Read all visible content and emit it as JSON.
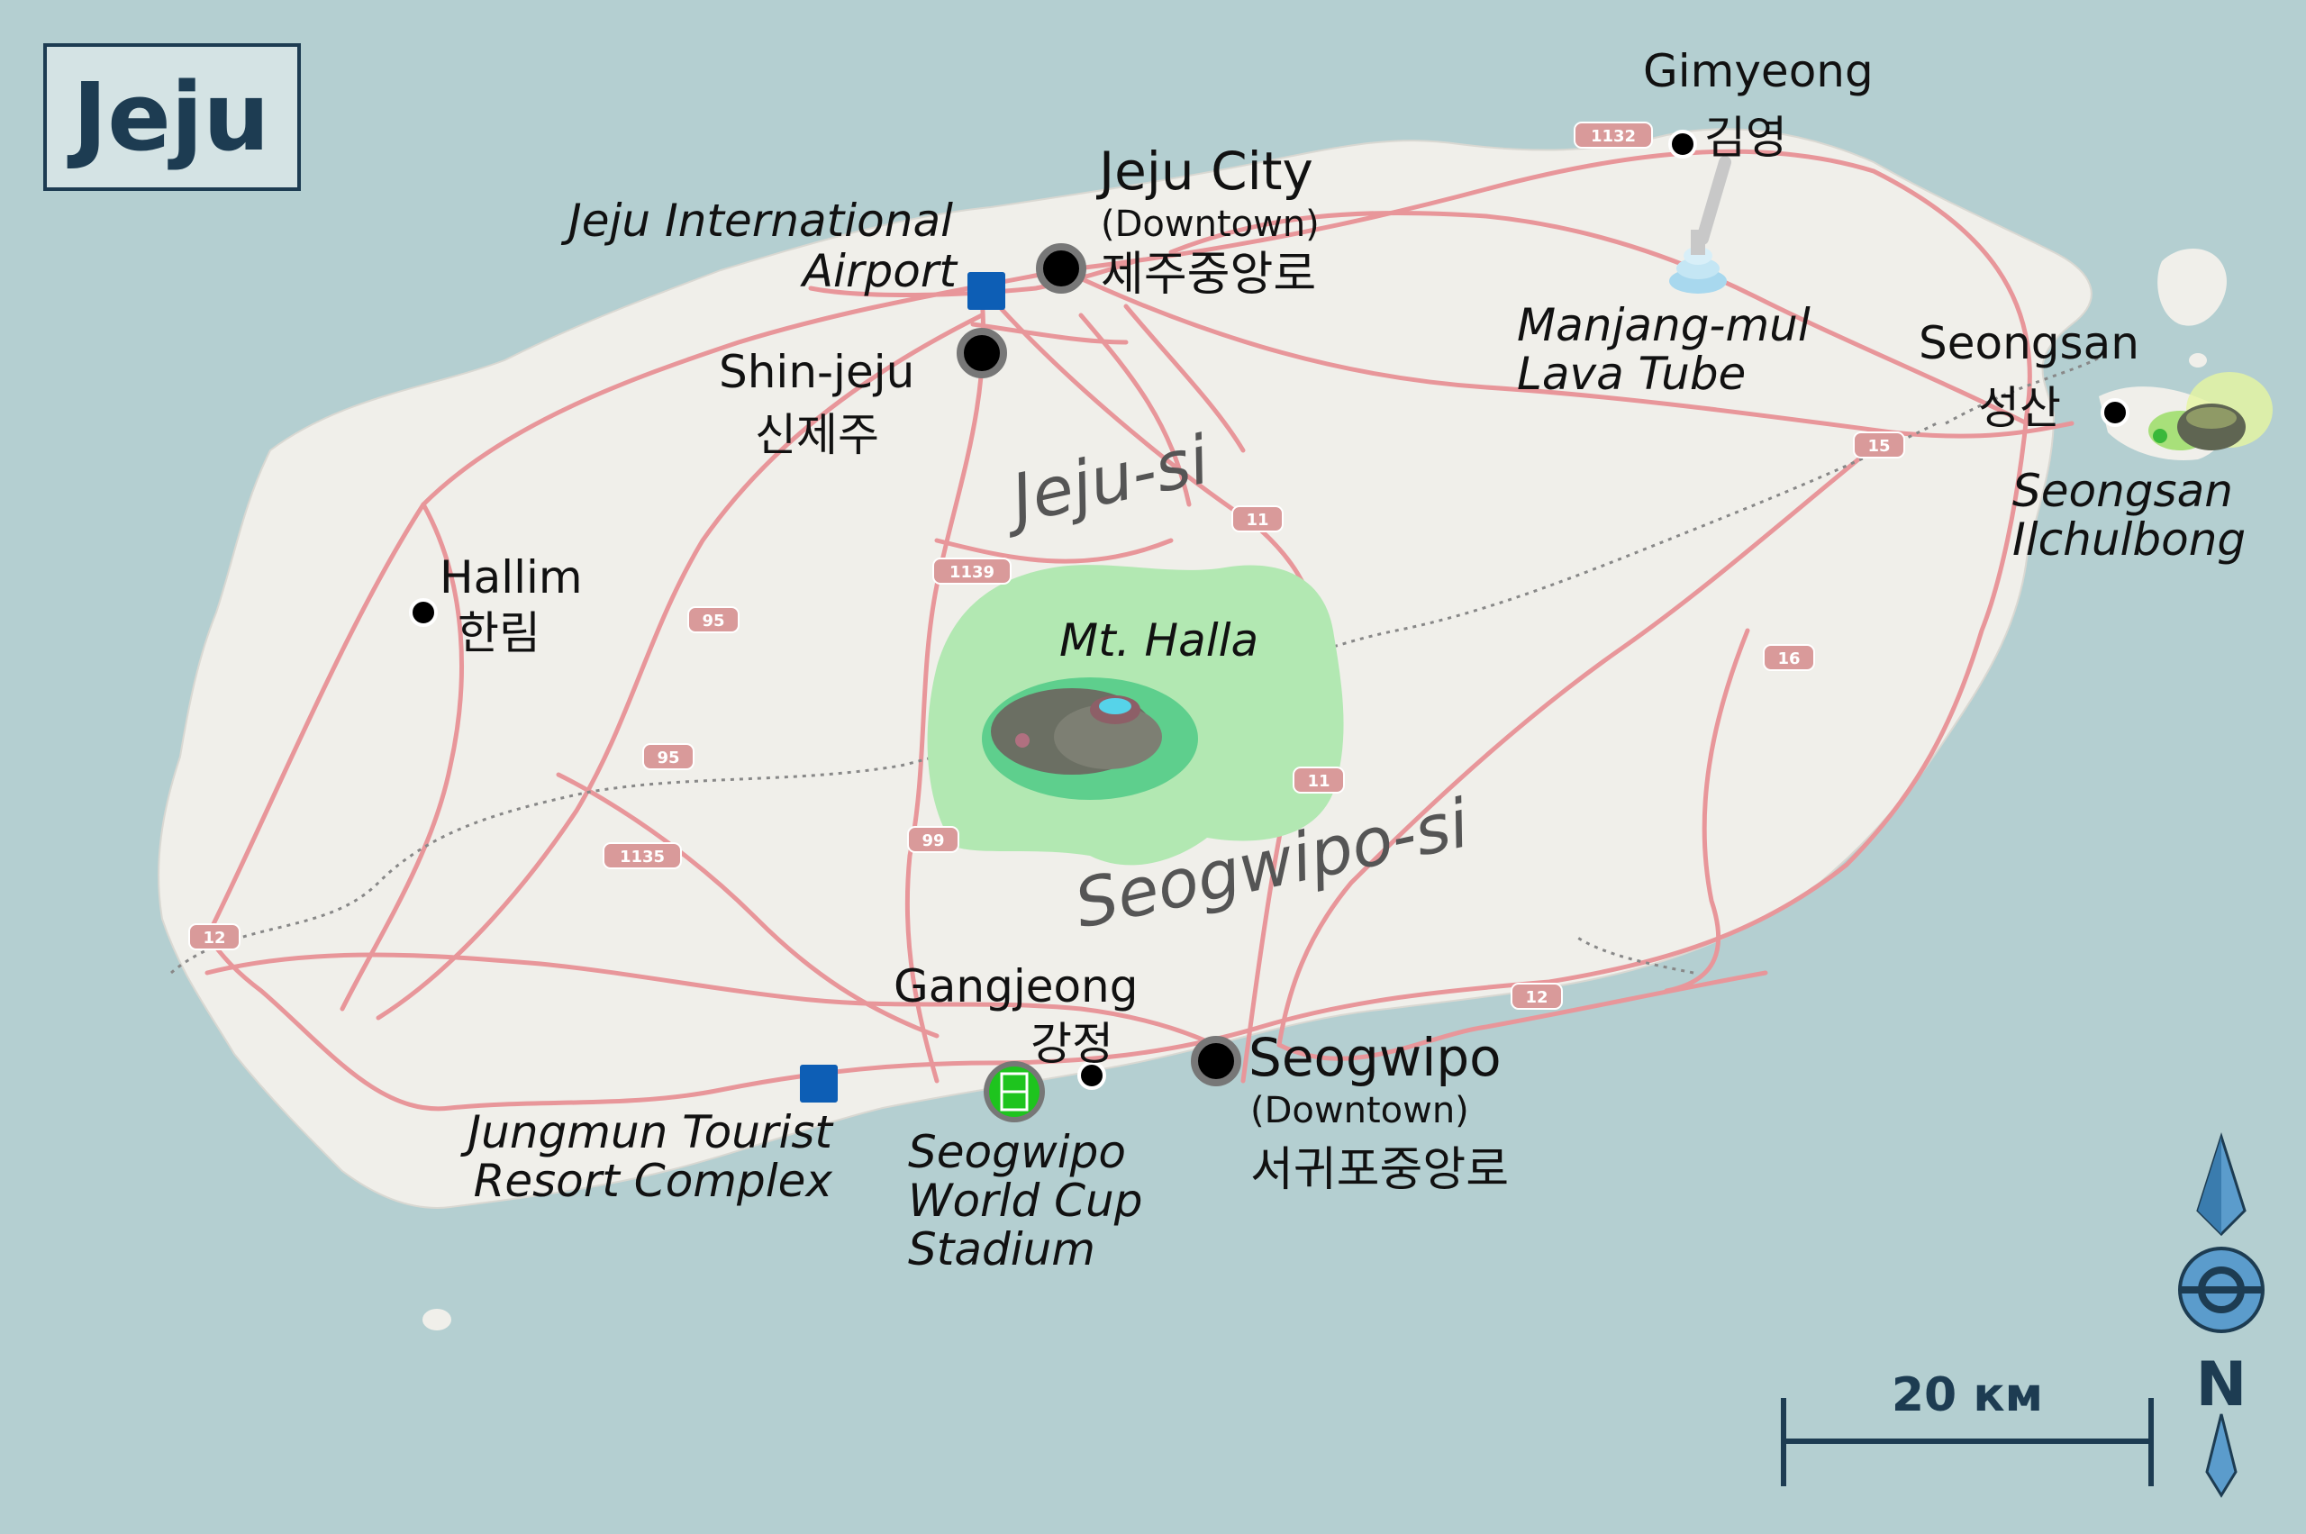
{
  "title": "Jeju",
  "regions": {
    "jeju_si": "Jeju-si",
    "seogwipo_si": "Seogwipo-si"
  },
  "cities": {
    "jeju_city": {
      "name": "Jeju City",
      "sub": "(Downtown)",
      "korean": "제주중앙로"
    },
    "seogwipo": {
      "name": "Seogwipo",
      "sub": "(Downtown)",
      "korean": "서귀포중앙로"
    },
    "shin_jeju": {
      "name": "Shin-jeju",
      "korean": "신제주"
    },
    "gimyeong": {
      "name": "Gimyeong",
      "korean": "김영"
    },
    "seongsan": {
      "name": "Seongsan",
      "korean": "성산"
    },
    "hallim": {
      "name": "Hallim",
      "korean": "한림"
    },
    "gangjeong": {
      "name": "Gangjeong",
      "korean": "강정"
    }
  },
  "pois": {
    "airport": {
      "line1": "Jeju International",
      "line2": "Airport"
    },
    "lava_tube": {
      "line1": "Manjang-mul",
      "line2": "Lava Tube"
    },
    "ilchulbong": {
      "line1": "Seongsan",
      "line2": "Ilchulbong"
    },
    "mt_halla": "Mt. Halla",
    "jungmun": {
      "line1": "Jungmun Tourist",
      "line2": "Resort Complex"
    },
    "stadium": {
      "line1": "Seogwipo",
      "line2": "World Cup",
      "line3": "Stadium"
    }
  },
  "road_shields": {
    "r1132": "1132",
    "r1139": "1139",
    "r95a": "95",
    "r95b": "95",
    "r1135": "1135",
    "r99": "99",
    "r12a": "12",
    "r12b": "12",
    "r11a": "11",
    "r11b": "11",
    "r16": "16",
    "r15": "15"
  },
  "scale": {
    "label": "20 км"
  },
  "compass": {
    "north": "N"
  },
  "colors": {
    "sea": "#b4cfd1",
    "land": "#f0efea",
    "road": "#e8969a",
    "park": "#b2e8b2",
    "title_text": "#1d3c52",
    "poi_square": "#0d5eb5"
  }
}
